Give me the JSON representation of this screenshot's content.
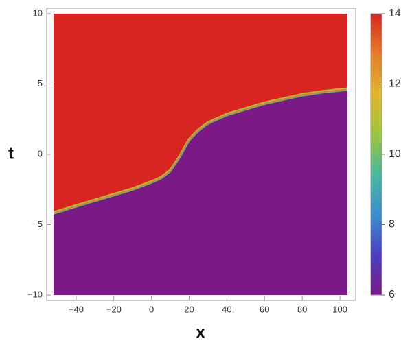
{
  "chart_data": {
    "type": "density",
    "xlabel": "x",
    "ylabel": "t",
    "x": [
      -52,
      -40,
      -30,
      -20,
      -10,
      0,
      5,
      10,
      15,
      20,
      25,
      30,
      40,
      50,
      60,
      70,
      80,
      90,
      104
    ],
    "series": [
      {
        "values": [
          -4.2,
          -3.7,
          -3.3,
          -2.9,
          -2.5,
          -2.0,
          -1.7,
          -1.2,
          -0.2,
          1.0,
          1.7,
          2.2,
          2.8,
          3.2,
          3.6,
          3.9,
          4.2,
          4.4,
          4.6
        ]
      }
    ],
    "above_value": 14,
    "below_value": 6,
    "xlim": [
      -52,
      104
    ],
    "xticks": [
      {
        "value": -40,
        "label": "−40"
      },
      {
        "value": -20,
        "label": "−20"
      },
      0,
      20,
      40,
      60,
      80,
      100
    ],
    "ylim": [
      -10,
      10
    ],
    "yticks": [
      {
        "value": -10,
        "label": "−10"
      },
      {
        "value": -5,
        "label": "−5"
      },
      0,
      5,
      10
    ],
    "zlim": [
      6,
      14
    ],
    "zticks": [
      6,
      8,
      10,
      12,
      14
    ],
    "colormap": [
      "#7b1a86",
      "#4a3fc2",
      "#3a8fd0",
      "#4bb8a0",
      "#9cc43c",
      "#e0b52c",
      "#e77d2a",
      "#d9251f"
    ]
  }
}
